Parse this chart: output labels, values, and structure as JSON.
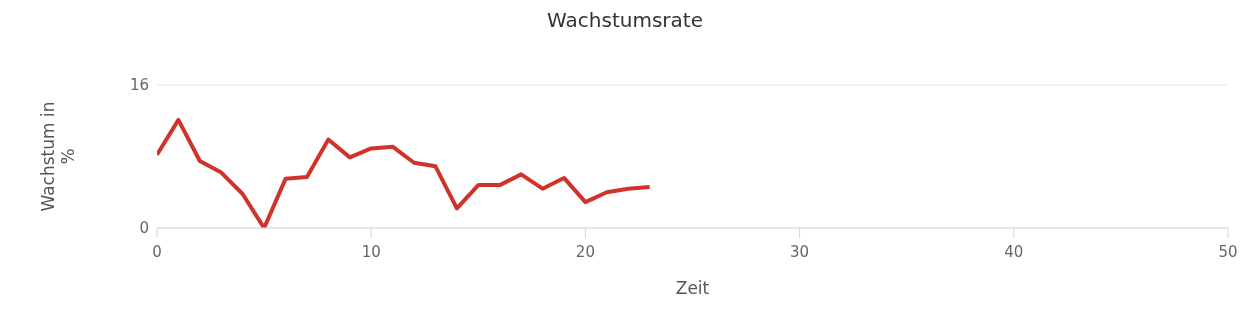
{
  "chart_data": {
    "type": "line",
    "title": "Wachstumsrate",
    "xlabel": "Zeit",
    "ylabel": "Wachstum in %",
    "x": [
      0,
      1,
      2,
      3,
      4,
      5,
      6,
      7,
      8,
      9,
      10,
      11,
      12,
      13,
      14,
      15,
      16,
      17,
      18,
      19,
      20,
      21,
      22,
      23
    ],
    "series": [
      {
        "color": "#d0332b",
        "values": [
          8.2,
          12.1,
          7.5,
          6.2,
          3.8,
          0,
          5.5,
          5.7,
          9.9,
          7.9,
          8.9,
          9.1,
          7.3,
          6.9,
          2.2,
          4.8,
          4.8,
          6.0,
          4.4,
          5.6,
          2.9,
          4.0,
          4.4,
          4.6
        ]
      }
    ],
    "xlim": [
      0,
      50
    ],
    "xticks": [
      0,
      10,
      20,
      30,
      40,
      50
    ],
    "ylim": [
      0,
      16
    ],
    "yticks": [
      0,
      16
    ],
    "grid": "y",
    "legend": false,
    "marker": "none",
    "line_style": "solid"
  }
}
